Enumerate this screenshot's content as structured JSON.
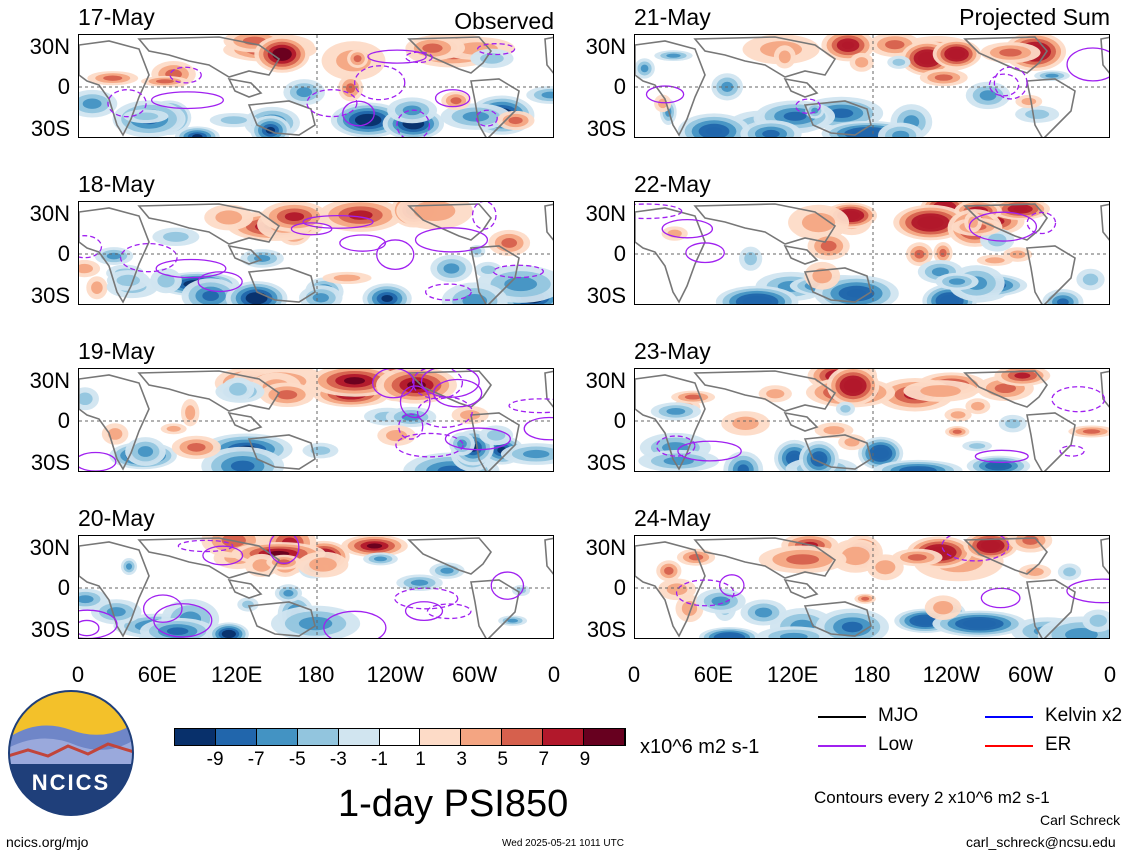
{
  "header": {
    "left_label": "Observed",
    "right_label": "Projected Sum"
  },
  "panels": [
    {
      "date": "17-May",
      "column": "observed"
    },
    {
      "date": "18-May",
      "column": "observed"
    },
    {
      "date": "19-May",
      "column": "observed"
    },
    {
      "date": "20-May",
      "column": "observed"
    },
    {
      "date": "21-May",
      "column": "projected"
    },
    {
      "date": "22-May",
      "column": "projected"
    },
    {
      "date": "23-May",
      "column": "projected"
    },
    {
      "date": "24-May",
      "column": "projected"
    }
  ],
  "axes": {
    "lat_ticks": [
      "30N",
      "0",
      "30S"
    ],
    "lon_ticks": [
      "0",
      "60E",
      "120E",
      "180",
      "120W",
      "60W",
      "0"
    ]
  },
  "colorbar": {
    "colors": [
      "#08306b",
      "#2166ac",
      "#4393c3",
      "#92c5de",
      "#d1e5f0",
      "#ffffff",
      "#fddbc7",
      "#f4a582",
      "#d6604d",
      "#b2182b",
      "#67001f"
    ],
    "tick_labels": [
      "-9",
      "-7",
      "-5",
      "-3",
      "-1",
      "1",
      "3",
      "5",
      "7",
      "9"
    ],
    "units": "x10^6 m2 s-1"
  },
  "legend": {
    "items": [
      {
        "label": "MJO",
        "color": "#000000"
      },
      {
        "label": "Kelvin x2",
        "color": "#0000ff"
      },
      {
        "label": "Low",
        "color": "#a020f0"
      },
      {
        "label": "ER",
        "color": "#ff0000"
      }
    ],
    "contours_note": "Contours every 2 x10^6 m2 s-1"
  },
  "title": "1-day PSI850",
  "footer": {
    "logo_text": "NCICS",
    "url": "ncics.org/mjo",
    "timestamp": "Wed 2025-05-21 1011 UTC",
    "author": "Carl Schreck",
    "email": "carl_schreck@ncsu.edu"
  },
  "chart_data": {
    "type": "heatmap",
    "variable": "1-day PSI850",
    "units": "x10^6 m2 s-1",
    "x_range": [
      "0",
      "0"
    ],
    "y_range": [
      "30S",
      "30N"
    ],
    "color_levels": [
      -9,
      -7,
      -5,
      -3,
      -1,
      1,
      3,
      5,
      7,
      9
    ],
    "dates": [
      "17-May",
      "18-May",
      "19-May",
      "20-May",
      "21-May",
      "22-May",
      "23-May",
      "24-May"
    ],
    "contour_interval": 2
  }
}
